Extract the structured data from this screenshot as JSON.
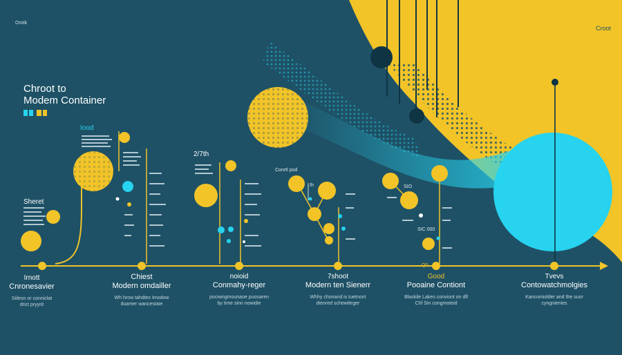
{
  "corner_left": "Orotk",
  "corner_right": "Croot",
  "title_line1": "Chroot to",
  "title_line2": "Modem Container",
  "labels": {
    "iood": "Iood",
    "start": "Sheret",
    "s2700": "2/7th",
    "cond": "Conrtl pod",
    "ih": "Ih",
    "sio": "SIO",
    "sc00": "SIC 000",
    "q0": "Q0"
  },
  "milestones": [
    {
      "key": "chroot",
      "label": "Irnott",
      "heading": "Cnronesavier",
      "desc1": "Siilesn or conniclat",
      "desc2": "drict pryyrit"
    },
    {
      "key": "chest",
      "label": "Chiest",
      "heading": "Modern omdailler",
      "desc1": "Wh hrow tahdtes Imodow",
      "desc2": "duamer wancestaie"
    },
    {
      "key": "noiold",
      "label": "noioid",
      "heading": "Conmahy-reger",
      "desc1": "pociwngmounaoe puosaren",
      "desc2": "by time sinn nowidie"
    },
    {
      "key": "shoot",
      "label": "7shoot",
      "heading": "Modern ten Sienerr",
      "desc1": "Whhy chonand is tuetnont",
      "desc2": "dienred schewiteger"
    },
    {
      "key": "good",
      "label": "Good",
      "heading": "Pooaine Contiont",
      "desc1": "Blaskile Lakes conviont on dfl",
      "desc2": "Chf Sin congmoteid"
    },
    {
      "key": "tvevs",
      "label": "Tvevs",
      "heading": "Contowatchmolgies",
      "desc1": "Kancomiolder and the suor",
      "desc2": "cyngnienies"
    }
  ],
  "colors": {
    "background": "#1e5166",
    "yellow": "#f2c428",
    "cyan": "#27d3ee",
    "dark": "#0f3444"
  }
}
